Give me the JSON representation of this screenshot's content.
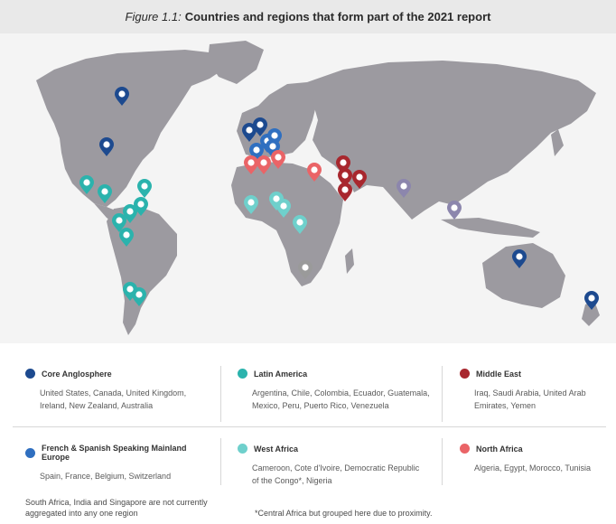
{
  "header": {
    "figure_label": "Figure 1.1:",
    "title": "Countries and regions that form part of the 2021 report"
  },
  "colors": {
    "land": "#9c9aa0",
    "core_anglosphere": "#1d4a8f",
    "latin_america": "#2bb3ad",
    "middle_east": "#a8272e",
    "french_spanish_europe": "#2f6fc0",
    "west_africa": "#6fd0cc",
    "north_africa": "#ea6467",
    "unaggregated": "#8c86ad",
    "unaggregated_grey": "#9a9a9a"
  },
  "legend": {
    "core_anglosphere": {
      "title": "Core Anglosphere",
      "countries": "United States, Canada, United Kingdom, Ireland, New Zealand, Australia"
    },
    "latin_america": {
      "title": "Latin America",
      "countries": "Argentina, Chile, Colombia, Ecuador, Guatemala, Mexico, Peru, Puerto Rico, Venezuela"
    },
    "middle_east": {
      "title": "Middle East",
      "countries": "Iraq, Saudi Arabia, United Arab Emirates, Yemen"
    },
    "french_spanish_europe": {
      "title": "French & Spanish Speaking Mainland Europe",
      "countries": "Spain, France, Belgium, Switzerland"
    },
    "west_africa": {
      "title": "West Africa",
      "countries": "Cameroon, Cote d'Ivoire, Democratic Republic of the Congo*, Nigeria"
    },
    "north_africa": {
      "title": "North Africa",
      "countries": "Algeria, Egypt, Morocco, Tunisia"
    }
  },
  "notes": {
    "unaggregated": "South Africa, India and Singapore are not currently aggregated into any one region",
    "central_africa": "*Central Africa but grouped here due to proximity."
  }
}
